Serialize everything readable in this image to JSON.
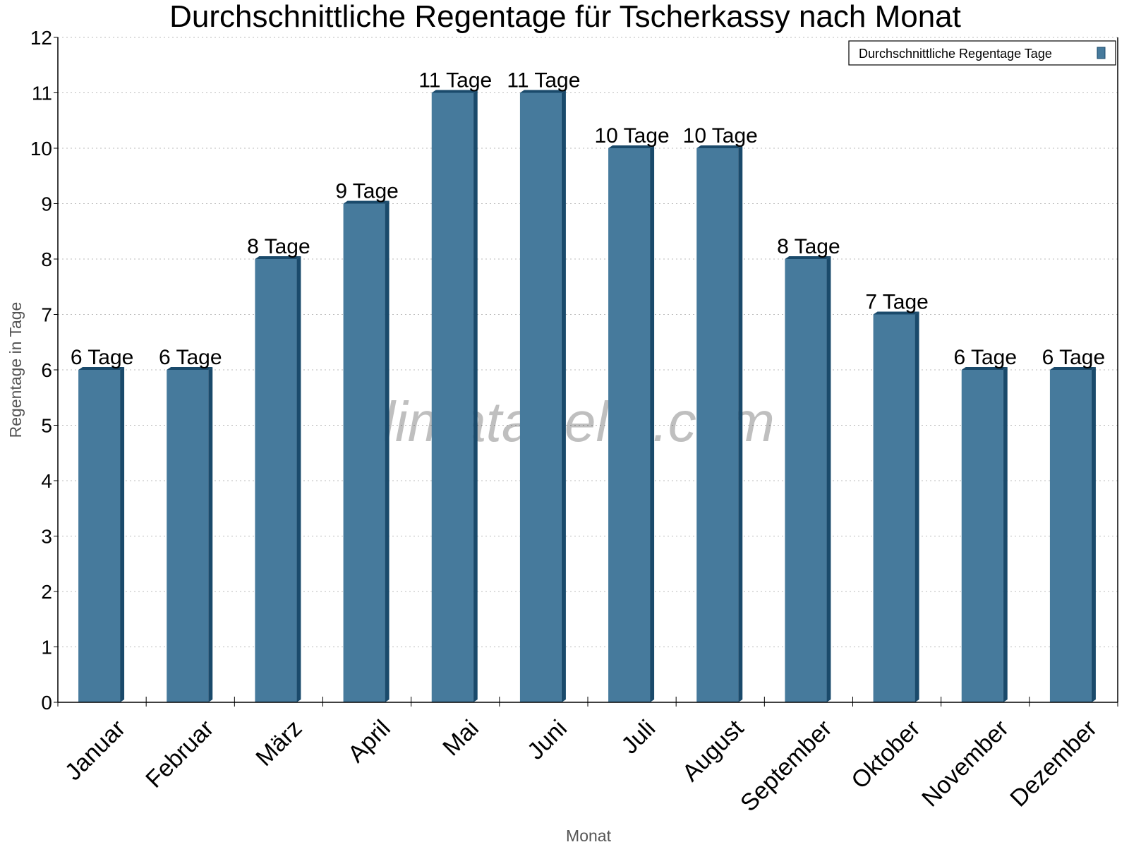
{
  "chart_data": {
    "type": "bar",
    "title": "Durchschnittliche Regentage für Tscherkassy nach Monat",
    "xlabel": "Monat",
    "ylabel": "Regentage in Tage",
    "categories": [
      "Januar",
      "Februar",
      "März",
      "April",
      "Mai",
      "Juni",
      "Juli",
      "August",
      "September",
      "Oktober",
      "November",
      "Dezember"
    ],
    "series": [
      {
        "name": "Durchschnittliche Regentage Tage",
        "values": [
          6,
          6,
          8,
          9,
          11,
          11,
          10,
          10,
          8,
          7,
          6,
          6
        ]
      }
    ],
    "data_labels": [
      "6 Tage",
      "6 Tage",
      "8 Tage",
      "9 Tage",
      "11 Tage",
      "11 Tage",
      "10 Tage",
      "10 Tage",
      "8 Tage",
      "7 Tage",
      "6 Tage",
      "6 Tage"
    ],
    "ylim": [
      0,
      12
    ],
    "yticks": [
      0,
      1,
      2,
      3,
      4,
      5,
      6,
      7,
      8,
      9,
      10,
      11,
      12
    ],
    "grid": true,
    "legend_position": "top-right",
    "colors": {
      "bar": "#467a9c",
      "bar_side": "#1a4a6b"
    },
    "watermark": "klimatabelle.com"
  }
}
